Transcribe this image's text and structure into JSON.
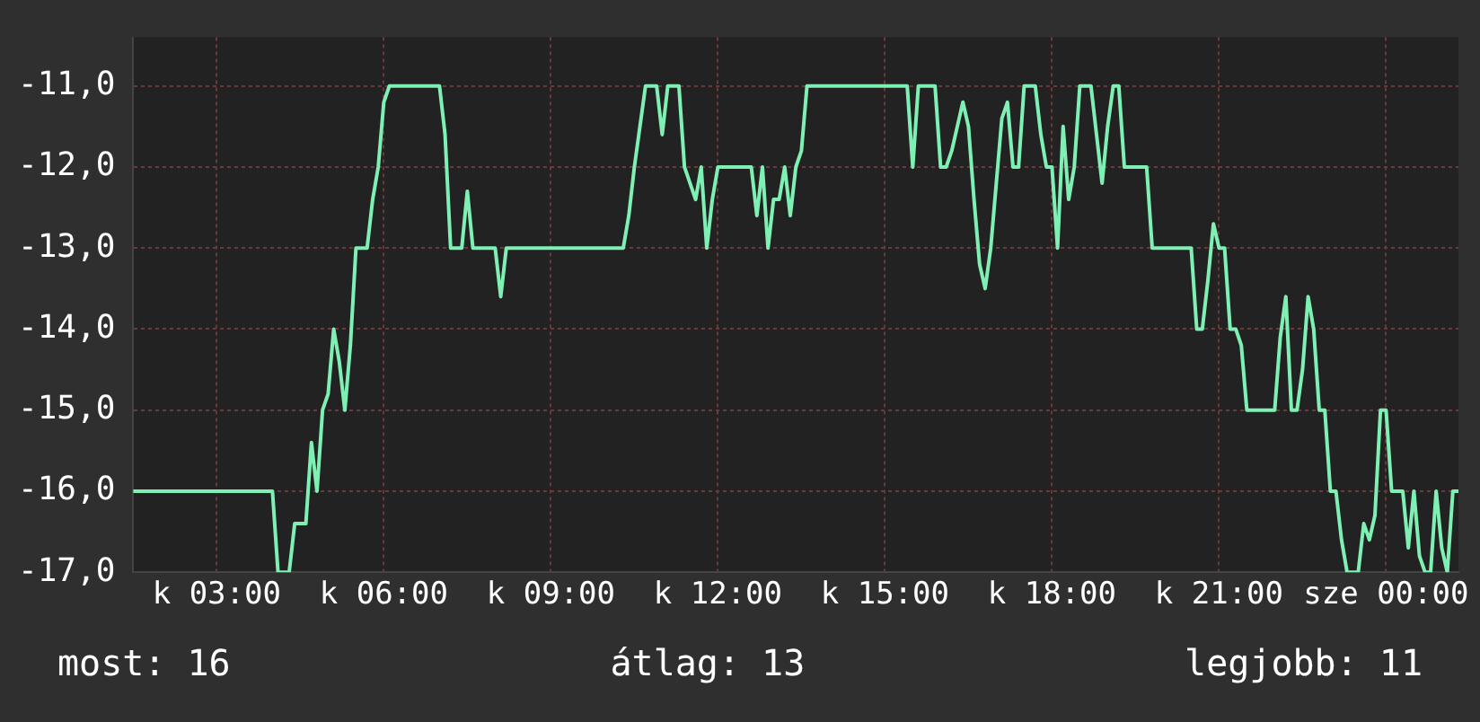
{
  "chart_data": {
    "type": "line",
    "categories": [
      null,
      null,
      null,
      null,
      null,
      null,
      null,
      null,
      null,
      null,
      null,
      null,
      null,
      null,
      null,
      "k 03:00",
      null,
      null,
      null,
      null,
      null,
      null,
      null,
      null,
      null,
      null,
      null,
      null,
      null,
      null,
      null,
      null,
      null,
      null,
      null,
      null,
      null,
      null,
      null,
      null,
      null,
      null,
      null,
      null,
      null,
      "k 06:00",
      null,
      null,
      null,
      null,
      null,
      null,
      null,
      null,
      null,
      null,
      null,
      null,
      null,
      null,
      null,
      null,
      null,
      null,
      null,
      null,
      null,
      null,
      null,
      null,
      null,
      null,
      null,
      null,
      null,
      "k 09:00",
      null,
      null,
      null,
      null,
      null,
      null,
      null,
      null,
      null,
      null,
      null,
      null,
      null,
      null,
      null,
      null,
      null,
      null,
      null,
      null,
      null,
      null,
      null,
      null,
      null,
      null,
      null,
      null,
      null,
      "k 12:00",
      null,
      null,
      null,
      null,
      null,
      null,
      null,
      null,
      null,
      null,
      null,
      null,
      null,
      null,
      null,
      null,
      null,
      null,
      null,
      null,
      null,
      null,
      null,
      null,
      null,
      null,
      null,
      null,
      null,
      "k 15:00",
      null,
      null,
      null,
      null,
      null,
      null,
      null,
      null,
      null,
      null,
      null,
      null,
      null,
      null,
      null,
      null,
      null,
      null,
      null,
      null,
      null,
      null,
      null,
      null,
      null,
      null,
      null,
      null,
      null,
      "k 18:00",
      null,
      null,
      null,
      null,
      null,
      null,
      null,
      null,
      null,
      null,
      null,
      null,
      null,
      null,
      null,
      null,
      null,
      null,
      null,
      null,
      null,
      null,
      null,
      null,
      null,
      null,
      null,
      null,
      null,
      "k 21:00",
      null,
      null,
      null,
      null,
      null,
      null,
      null,
      null,
      null,
      null,
      null,
      null,
      null,
      null,
      null,
      null,
      null,
      null,
      null,
      null,
      null,
      null,
      null,
      null,
      null,
      null,
      null,
      null,
      null,
      "sze 00:00",
      null,
      null,
      null,
      null,
      null,
      null,
      null,
      null,
      null,
      null,
      null,
      null,
      null
    ],
    "series": [
      {
        "color": "#7ff0b4",
        "values": [
          -16,
          -16,
          -16,
          -16,
          -16,
          -16,
          -16,
          -16,
          -16,
          -16,
          -16,
          -16,
          -16,
          -16,
          -16,
          -16,
          -16,
          -16,
          -16,
          -16,
          -16,
          -16,
          -16,
          -16,
          -16,
          -16,
          -17,
          -17,
          -17,
          -16.4,
          -16.4,
          -16.4,
          -15.4,
          -16,
          -15,
          -14.8,
          -14,
          -14.4,
          -15,
          -14.2,
          -13,
          -13,
          -13,
          -12.4,
          -12,
          -11.2,
          -11,
          -11,
          -11,
          -11,
          -11,
          -11,
          -11,
          -11,
          -11,
          -11,
          -11.6,
          -13,
          -13,
          -13,
          -12.3,
          -13,
          -13,
          -13,
          -13,
          -13,
          -13.6,
          -13,
          -13,
          -13,
          -13,
          -13,
          -13,
          -13,
          -13,
          -13,
          -13,
          -13,
          -13,
          -13,
          -13,
          -13,
          -13,
          -13,
          -13,
          -13,
          -13,
          -13,
          -13,
          -12.6,
          -12,
          -11.5,
          -11,
          -11,
          -11,
          -11.6,
          -11,
          -11,
          -11,
          -12,
          -12.2,
          -12.4,
          -12,
          -13,
          -12.4,
          -12,
          -12,
          -12,
          -12,
          -12,
          -12,
          -12,
          -12.6,
          -12,
          -13,
          -12.4,
          -12.4,
          -12,
          -12.6,
          -12,
          -11.8,
          -11,
          -11,
          -11,
          -11,
          -11,
          -11,
          -11,
          -11,
          -11,
          -11,
          -11,
          -11,
          -11,
          -11,
          -11,
          -11,
          -11,
          -11,
          -11,
          -12,
          -11,
          -11,
          -11,
          -11,
          -12,
          -12,
          -11.8,
          -11.5,
          -11.2,
          -11.5,
          -12.4,
          -13.2,
          -13.5,
          -13,
          -12.2,
          -11.4,
          -11.2,
          -12,
          -12,
          -11,
          -11,
          -11,
          -11.6,
          -12,
          -12,
          -13,
          -11.5,
          -12.4,
          -12,
          -11,
          -11,
          -11,
          -11.6,
          -12.2,
          -11.5,
          -11,
          -11,
          -12,
          -12,
          -12,
          -12,
          -12,
          -13,
          -13,
          -13,
          -13,
          -13,
          -13,
          -13,
          -13,
          -14,
          -14,
          -13.4,
          -12.7,
          -13,
          -13,
          -14,
          -14,
          -14.2,
          -15,
          -15,
          -15,
          -15,
          -15,
          -15,
          -14.1,
          -13.6,
          -15,
          -15,
          -14.5,
          -13.6,
          -14,
          -15,
          -15,
          -16,
          -16,
          -16.6,
          -17,
          -17,
          -17,
          -16.4,
          -16.6,
          -16.3,
          -15,
          -15,
          -16,
          -16,
          -16,
          -16.7,
          -16,
          -16.8,
          -17,
          -17,
          -16,
          -16.7,
          -17,
          -16,
          -16
        ]
      }
    ],
    "ylim": [
      -17,
      -10.4
    ],
    "yticks": [
      {
        "value": -17,
        "label": "-17,0"
      },
      {
        "value": -16,
        "label": "-16,0"
      },
      {
        "value": -15,
        "label": "-15,0"
      },
      {
        "value": -14,
        "label": "-14,0"
      },
      {
        "value": -13,
        "label": "-13,0"
      },
      {
        "value": -12,
        "label": "-12,0"
      },
      {
        "value": -11,
        "label": "-11,0"
      }
    ],
    "grid": true,
    "legend": false,
    "marker": "none",
    "line_style": "solid",
    "annotations": [
      "most: 16",
      "átlag: 13",
      "legjobb: 11"
    ]
  }
}
